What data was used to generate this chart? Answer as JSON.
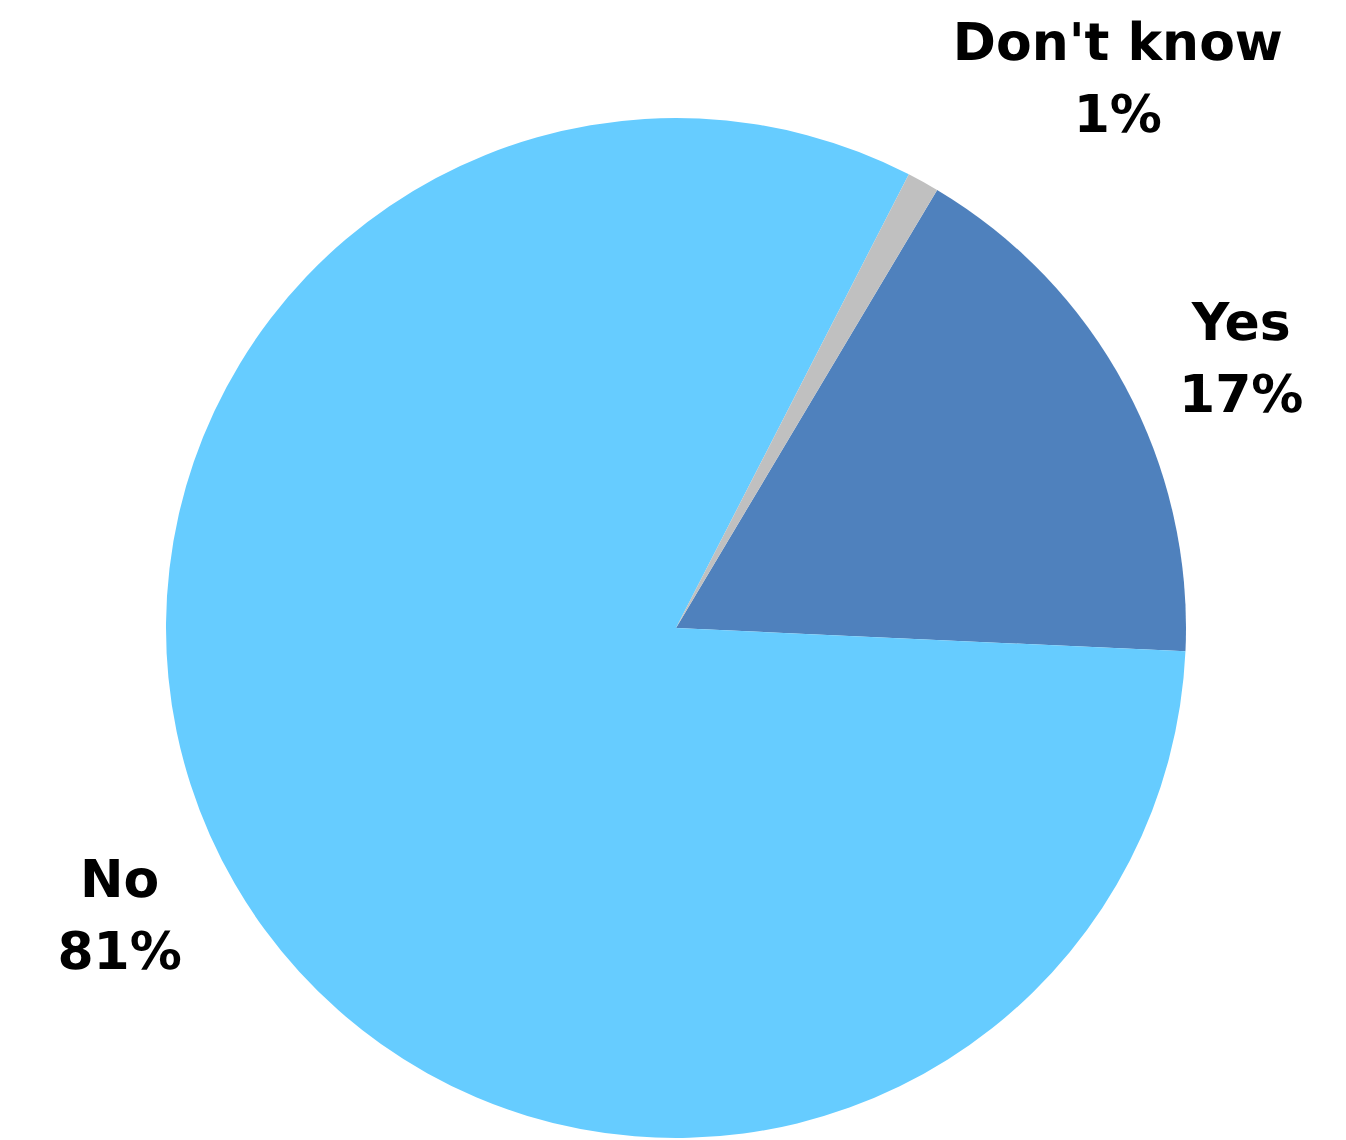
{
  "chart_data": {
    "type": "pie",
    "categories": [
      "Yes",
      "No",
      "Don't know"
    ],
    "values": [
      17,
      81,
      1
    ],
    "colors": [
      "#4f81bd",
      "#66ccff",
      "#c0c0c0"
    ],
    "value_labels": [
      "17%",
      "81%",
      "1%"
    ],
    "legend": false
  }
}
